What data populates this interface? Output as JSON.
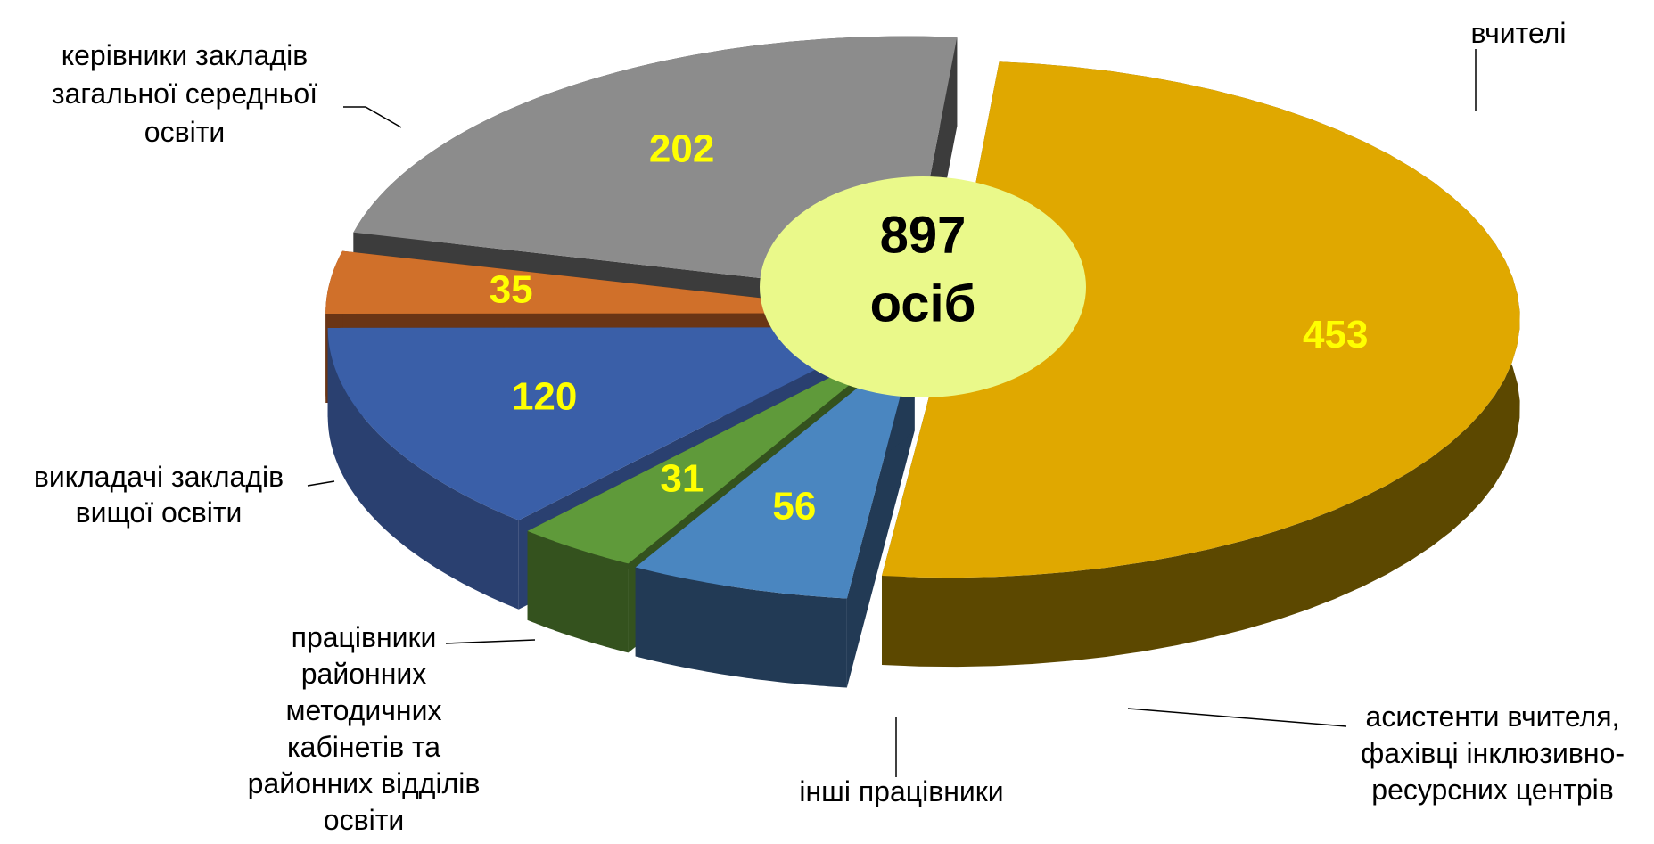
{
  "chart_data": {
    "type": "pie3d",
    "categories": [
      "вчителі",
      "асистенти вчителя,\nфахівці інклюзивно-\nресурсних центрів",
      "інші працівники",
      "працівники\nрайонних\nметодичних\nкабінетів та\nрайонних відділів\nосвіти",
      "викладачі закладів\nвищої освіти",
      "керівники закладів\nзагальної середньої\nосвіти"
    ],
    "values": [
      453,
      56,
      31,
      120,
      35,
      202
    ],
    "colors": [
      "#e0a800",
      "#4a86c0",
      "#5f9a3a",
      "#3a5fa8",
      "#d0702a",
      "#8c8c8c"
    ],
    "side_colors": [
      "#5c4800",
      "#223a55",
      "#34521e",
      "#2a4070",
      "#6a3515",
      "#3c3c3c"
    ],
    "center_text": {
      "value": 897,
      "unit": "осіб"
    }
  }
}
